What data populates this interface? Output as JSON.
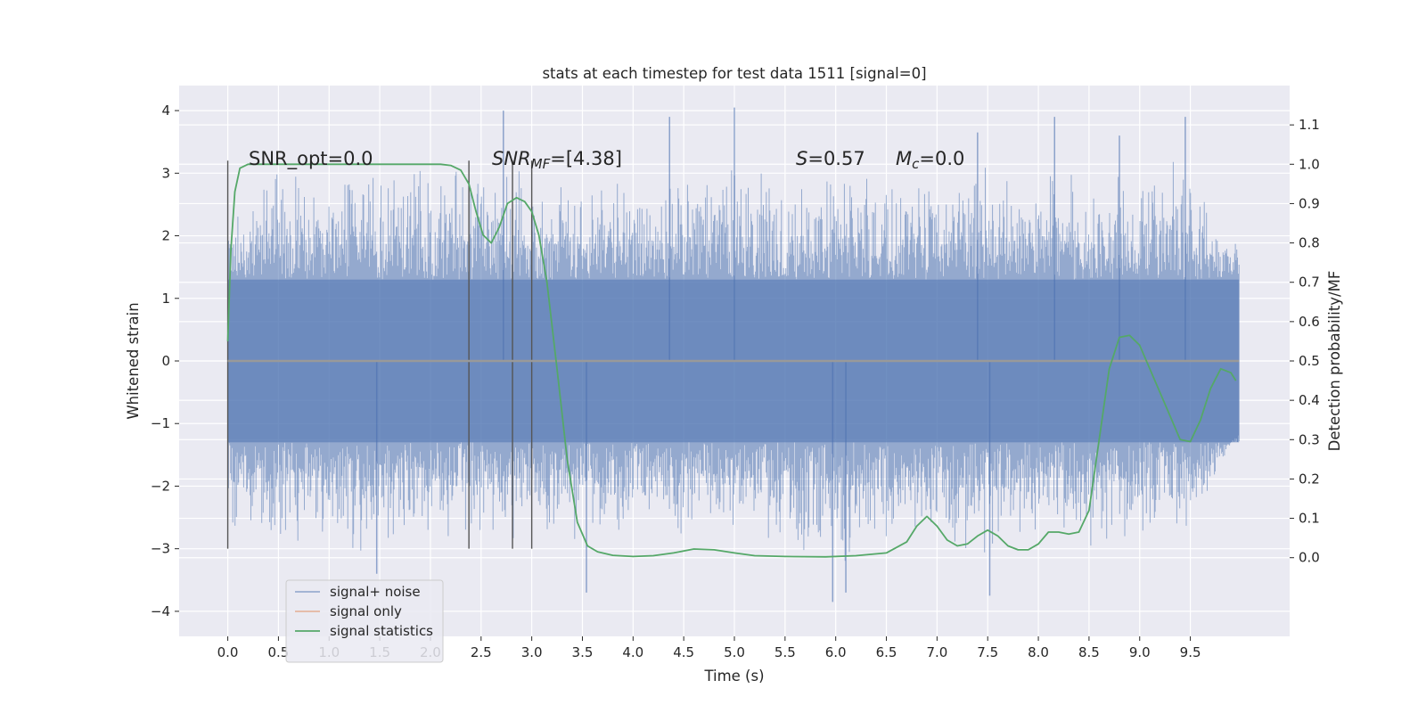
{
  "chart_data": {
    "type": "line",
    "title": "stats at each timestep for test data 1511 [signal=0]",
    "xlabel": "Time (s)",
    "ylabel": "Whitened strain",
    "ylabel_right": "Detection probability/MF",
    "xlim": [
      -0.48,
      10.48
    ],
    "ylim": [
      -4.4,
      4.4
    ],
    "ylim_right": [
      -0.2,
      1.2
    ],
    "xticks": [
      "0.0",
      "0.5",
      "1.0",
      "1.5",
      "2.0",
      "2.5",
      "3.0",
      "3.5",
      "4.0",
      "4.5",
      "5.0",
      "5.5",
      "6.0",
      "6.5",
      "7.0",
      "7.5",
      "8.0",
      "8.5",
      "9.0",
      "9.5"
    ],
    "yticks": [
      "4",
      "3",
      "2",
      "1",
      "0",
      "−1",
      "−2",
      "−3",
      "−4"
    ],
    "yticks_right": [
      "1.1",
      "1.0",
      "0.9",
      "0.8",
      "0.7",
      "0.6",
      "0.5",
      "0.4",
      "0.3",
      "0.2",
      "0.1",
      "0.0"
    ],
    "grid": true,
    "legend_position": "lower-left",
    "annotations": {
      "snr_opt": "SNR_opt=0.0",
      "snr_mf_base": "SNR",
      "snr_mf_sub": "MF",
      "snr_mf_value": "=[4.38]",
      "s_var": "S",
      "s_value": "=0.57",
      "mc_var": "M",
      "mc_sub": "c",
      "mc_value": "=0.0"
    },
    "vertical_lines_x": [
      0.0,
      2.38,
      2.81,
      3.0
    ],
    "vertical_lines_yrange": [
      -3.0,
      3.2
    ],
    "noise_envelope": {
      "x": [
        0.0,
        0.5,
        1.0,
        1.5,
        2.0,
        2.5,
        3.0,
        3.5,
        4.0,
        4.5,
        5.0,
        5.5,
        6.0,
        6.5,
        7.0,
        7.5,
        8.0,
        8.5,
        9.0,
        9.5,
        9.98
      ],
      "upper": [
        2.6,
        3.2,
        3.2,
        3.3,
        3.1,
        3.2,
        3.1,
        3.0,
        3.0,
        3.2,
        3.3,
        3.0,
        3.0,
        3.1,
        3.2,
        3.2,
        3.0,
        3.1,
        3.2,
        3.3,
        1.9
      ],
      "lower": [
        -2.6,
        -3.0,
        -3.0,
        -3.3,
        -2.9,
        -3.0,
        -2.9,
        -3.2,
        -2.8,
        -2.9,
        -3.0,
        -3.0,
        -3.6,
        -3.0,
        -3.1,
        -3.3,
        -2.9,
        -3.0,
        -3.0,
        -2.9,
        -1.0
      ]
    },
    "noise_spikes": [
      {
        "x": 2.72,
        "y": 4.0
      },
      {
        "x": 5.0,
        "y": 4.05
      },
      {
        "x": 4.36,
        "y": 3.9
      },
      {
        "x": 8.16,
        "y": 3.9
      },
      {
        "x": 9.45,
        "y": 3.9
      },
      {
        "x": 1.47,
        "y": -3.4
      },
      {
        "x": 3.54,
        "y": -3.7
      },
      {
        "x": 5.97,
        "y": -3.85
      },
      {
        "x": 7.52,
        "y": -3.75
      },
      {
        "x": 6.1,
        "y": -3.7
      },
      {
        "x": 7.4,
        "y": 3.65
      },
      {
        "x": 8.8,
        "y": 3.6
      }
    ],
    "series": [
      {
        "name": "signal+ noise",
        "color": "#4c72b0"
      },
      {
        "name": "signal only",
        "color": "#dd8452",
        "x": [
          0.0,
          9.98
        ],
        "y": [
          0.0,
          0.0
        ]
      },
      {
        "name": "signal statistics",
        "color": "#55a868",
        "axis": "right",
        "x": [
          0.0,
          0.03,
          0.07,
          0.12,
          0.2,
          0.35,
          0.6,
          1.0,
          1.5,
          1.9,
          2.1,
          2.2,
          2.3,
          2.38,
          2.45,
          2.52,
          2.6,
          2.68,
          2.76,
          2.85,
          2.93,
          3.0,
          3.07,
          3.15,
          3.25,
          3.35,
          3.45,
          3.55,
          3.65,
          3.8,
          4.0,
          4.2,
          4.4,
          4.6,
          4.8,
          5.0,
          5.2,
          5.5,
          5.9,
          6.2,
          6.5,
          6.7,
          6.8,
          6.9,
          7.0,
          7.1,
          7.2,
          7.3,
          7.4,
          7.5,
          7.6,
          7.7,
          7.8,
          7.9,
          8.0,
          8.1,
          8.2,
          8.3,
          8.4,
          8.5,
          8.6,
          8.7,
          8.8,
          8.9,
          9.0,
          9.1,
          9.2,
          9.3,
          9.4,
          9.5,
          9.6,
          9.7,
          9.8,
          9.9,
          9.95
        ],
        "y": [
          0.55,
          0.78,
          0.93,
          0.99,
          1.0,
          1.0,
          1.0,
          1.0,
          1.0,
          1.0,
          1.0,
          0.997,
          0.985,
          0.95,
          0.88,
          0.82,
          0.8,
          0.84,
          0.9,
          0.915,
          0.905,
          0.88,
          0.82,
          0.7,
          0.48,
          0.25,
          0.09,
          0.03,
          0.015,
          0.006,
          0.003,
          0.005,
          0.012,
          0.022,
          0.02,
          0.012,
          0.005,
          0.003,
          0.002,
          0.005,
          0.012,
          0.04,
          0.08,
          0.105,
          0.08,
          0.045,
          0.03,
          0.035,
          0.055,
          0.07,
          0.055,
          0.03,
          0.02,
          0.02,
          0.035,
          0.065,
          0.065,
          0.06,
          0.065,
          0.12,
          0.3,
          0.48,
          0.56,
          0.565,
          0.54,
          0.48,
          0.42,
          0.36,
          0.3,
          0.295,
          0.35,
          0.43,
          0.48,
          0.47,
          0.45
        ]
      }
    ]
  }
}
